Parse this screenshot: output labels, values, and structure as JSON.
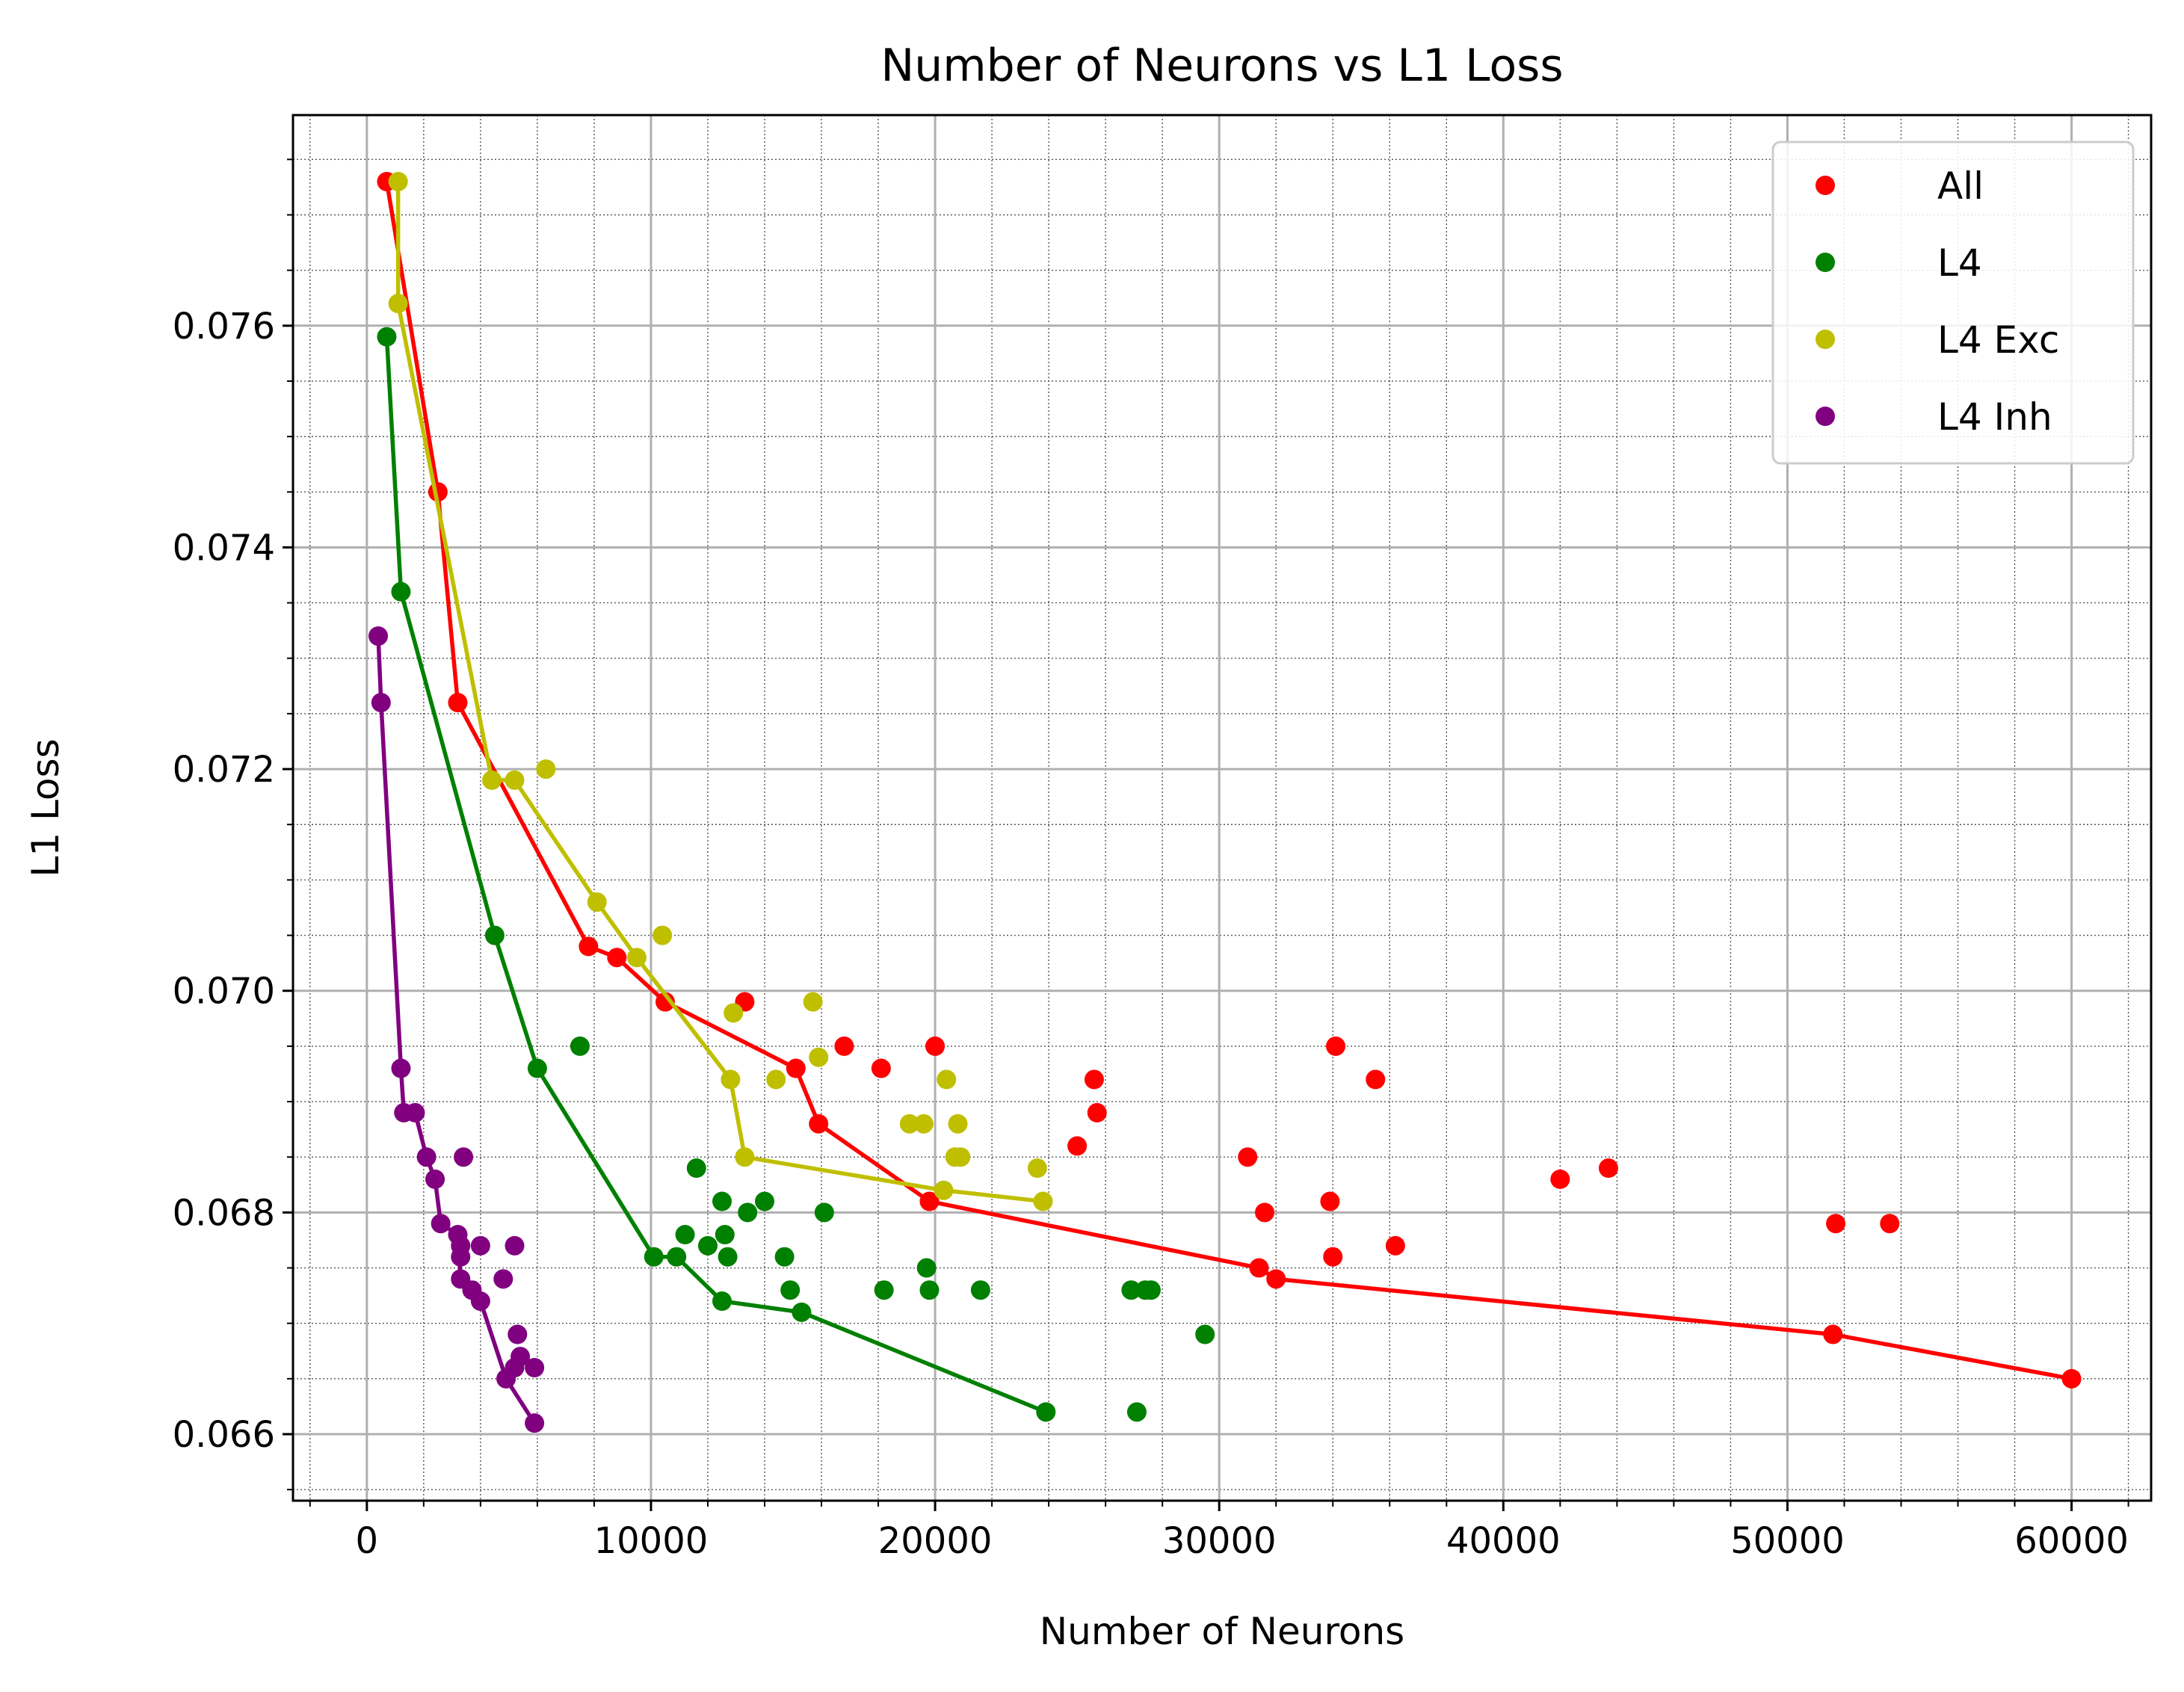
{
  "chart_data": {
    "type": "scatter",
    "title": "Number of Neurons vs L1 Loss",
    "xlabel": "Number of Neurons",
    "ylabel": "L1 Loss",
    "xlim": [
      -2600,
      62800
    ],
    "ylim": [
      0.0654,
      0.0779
    ],
    "xticks": [
      0,
      10000,
      20000,
      30000,
      40000,
      50000,
      60000
    ],
    "xtick_labels": [
      "0",
      "10000",
      "20000",
      "30000",
      "40000",
      "50000",
      "60000"
    ],
    "yticks": [
      0.066,
      0.068,
      0.07,
      0.072,
      0.074,
      0.076
    ],
    "ytick_labels": [
      "0.066",
      "0.068",
      "0.070",
      "0.072",
      "0.074",
      "0.076"
    ],
    "grid": "major and minor",
    "legend_position": "top-right",
    "series": [
      {
        "name": "All",
        "color": "#ff0000",
        "points": [
          [
            700,
            0.0773
          ],
          [
            2500,
            0.0745
          ],
          [
            3200,
            0.0726
          ],
          [
            7800,
            0.0704
          ],
          [
            8800,
            0.0703
          ],
          [
            10500,
            0.0699
          ],
          [
            13300,
            0.0699
          ],
          [
            15100,
            0.0693
          ],
          [
            15900,
            0.0688
          ],
          [
            16800,
            0.0695
          ],
          [
            18100,
            0.0693
          ],
          [
            19800,
            0.0681
          ],
          [
            20000,
            0.0695
          ],
          [
            25000,
            0.0686
          ],
          [
            25600,
            0.0692
          ],
          [
            25700,
            0.0689
          ],
          [
            31000,
            0.0685
          ],
          [
            31400,
            0.0675
          ],
          [
            31600,
            0.068
          ],
          [
            32000,
            0.0674
          ],
          [
            33900,
            0.0681
          ],
          [
            34000,
            0.0676
          ],
          [
            34100,
            0.0695
          ],
          [
            35500,
            0.0692
          ],
          [
            36200,
            0.0677
          ],
          [
            42000,
            0.0683
          ],
          [
            43700,
            0.0684
          ],
          [
            51600,
            0.0669
          ],
          [
            51700,
            0.0679
          ],
          [
            53600,
            0.0679
          ],
          [
            60000,
            0.0665
          ]
        ],
        "frontier": [
          [
            700,
            0.0773
          ],
          [
            2500,
            0.0745
          ],
          [
            3200,
            0.0726
          ],
          [
            7800,
            0.0704
          ],
          [
            8800,
            0.0703
          ],
          [
            10500,
            0.0699
          ],
          [
            15100,
            0.0693
          ],
          [
            15900,
            0.0688
          ],
          [
            19800,
            0.0681
          ],
          [
            31400,
            0.0675
          ],
          [
            32000,
            0.0674
          ],
          [
            51600,
            0.0669
          ],
          [
            60000,
            0.0665
          ]
        ]
      },
      {
        "name": "L4",
        "color": "#008000",
        "points": [
          [
            700,
            0.0759
          ],
          [
            1200,
            0.0736
          ],
          [
            4500,
            0.0705
          ],
          [
            6000,
            0.0693
          ],
          [
            7500,
            0.0695
          ],
          [
            10100,
            0.0676
          ],
          [
            10900,
            0.0676
          ],
          [
            11200,
            0.0678
          ],
          [
            11600,
            0.0684
          ],
          [
            12000,
            0.0677
          ],
          [
            12500,
            0.0672
          ],
          [
            12500,
            0.0681
          ],
          [
            12600,
            0.0678
          ],
          [
            12700,
            0.0676
          ],
          [
            13400,
            0.068
          ],
          [
            14000,
            0.0681
          ],
          [
            14700,
            0.0676
          ],
          [
            14900,
            0.0673
          ],
          [
            15300,
            0.0671
          ],
          [
            16100,
            0.068
          ],
          [
            18200,
            0.0673
          ],
          [
            19700,
            0.0675
          ],
          [
            19800,
            0.0673
          ],
          [
            21600,
            0.0673
          ],
          [
            23900,
            0.0662
          ],
          [
            26900,
            0.0673
          ],
          [
            27100,
            0.0662
          ],
          [
            27400,
            0.0673
          ],
          [
            27600,
            0.0673
          ],
          [
            29500,
            0.0669
          ]
        ],
        "frontier": [
          [
            700,
            0.0759
          ],
          [
            1200,
            0.0736
          ],
          [
            4500,
            0.0705
          ],
          [
            6000,
            0.0693
          ],
          [
            10100,
            0.0676
          ],
          [
            10900,
            0.0676
          ],
          [
            12500,
            0.0672
          ],
          [
            15300,
            0.0671
          ],
          [
            23900,
            0.0662
          ]
        ]
      },
      {
        "name": "L4 Exc",
        "color": "#bfbf00",
        "points": [
          [
            1100,
            0.0773
          ],
          [
            1100,
            0.0762
          ],
          [
            4400,
            0.0719
          ],
          [
            5200,
            0.0719
          ],
          [
            6300,
            0.072
          ],
          [
            8100,
            0.0708
          ],
          [
            9500,
            0.0703
          ],
          [
            10400,
            0.0705
          ],
          [
            12800,
            0.0692
          ],
          [
            12900,
            0.0698
          ],
          [
            13300,
            0.0685
          ],
          [
            14400,
            0.0692
          ],
          [
            15700,
            0.0699
          ],
          [
            15900,
            0.0694
          ],
          [
            19100,
            0.0688
          ],
          [
            19600,
            0.0688
          ],
          [
            20300,
            0.0682
          ],
          [
            20400,
            0.0692
          ],
          [
            20700,
            0.0685
          ],
          [
            20800,
            0.0688
          ],
          [
            20900,
            0.0685
          ],
          [
            23600,
            0.0684
          ],
          [
            23800,
            0.0681
          ]
        ],
        "frontier": [
          [
            1100,
            0.0773
          ],
          [
            1100,
            0.0762
          ],
          [
            4400,
            0.0719
          ],
          [
            5200,
            0.0719
          ],
          [
            8100,
            0.0708
          ],
          [
            9500,
            0.0703
          ],
          [
            12800,
            0.0692
          ],
          [
            13300,
            0.0685
          ],
          [
            20300,
            0.0682
          ],
          [
            23800,
            0.0681
          ]
        ]
      },
      {
        "name": "L4 Inh",
        "color": "#800080",
        "points": [
          [
            400,
            0.0732
          ],
          [
            500,
            0.0726
          ],
          [
            1200,
            0.0693
          ],
          [
            1300,
            0.0689
          ],
          [
            1700,
            0.0689
          ],
          [
            2100,
            0.0685
          ],
          [
            2400,
            0.0683
          ],
          [
            2600,
            0.0679
          ],
          [
            3200,
            0.0678
          ],
          [
            3300,
            0.0677
          ],
          [
            3300,
            0.0674
          ],
          [
            3300,
            0.0676
          ],
          [
            3400,
            0.0685
          ],
          [
            3700,
            0.0673
          ],
          [
            4000,
            0.0672
          ],
          [
            4000,
            0.0677
          ],
          [
            4800,
            0.0674
          ],
          [
            4900,
            0.0665
          ],
          [
            5200,
            0.0677
          ],
          [
            5200,
            0.0666
          ],
          [
            5300,
            0.0669
          ],
          [
            5400,
            0.0667
          ],
          [
            5900,
            0.0666
          ],
          [
            5900,
            0.0661
          ]
        ],
        "frontier": [
          [
            400,
            0.0732
          ],
          [
            500,
            0.0726
          ],
          [
            1200,
            0.0693
          ],
          [
            1300,
            0.0689
          ],
          [
            1700,
            0.0689
          ],
          [
            2100,
            0.0685
          ],
          [
            2400,
            0.0683
          ],
          [
            2600,
            0.0679
          ],
          [
            3200,
            0.0678
          ],
          [
            3300,
            0.0674
          ],
          [
            3700,
            0.0673
          ],
          [
            4000,
            0.0672
          ],
          [
            4900,
            0.0665
          ],
          [
            5900,
            0.0661
          ]
        ]
      }
    ]
  }
}
